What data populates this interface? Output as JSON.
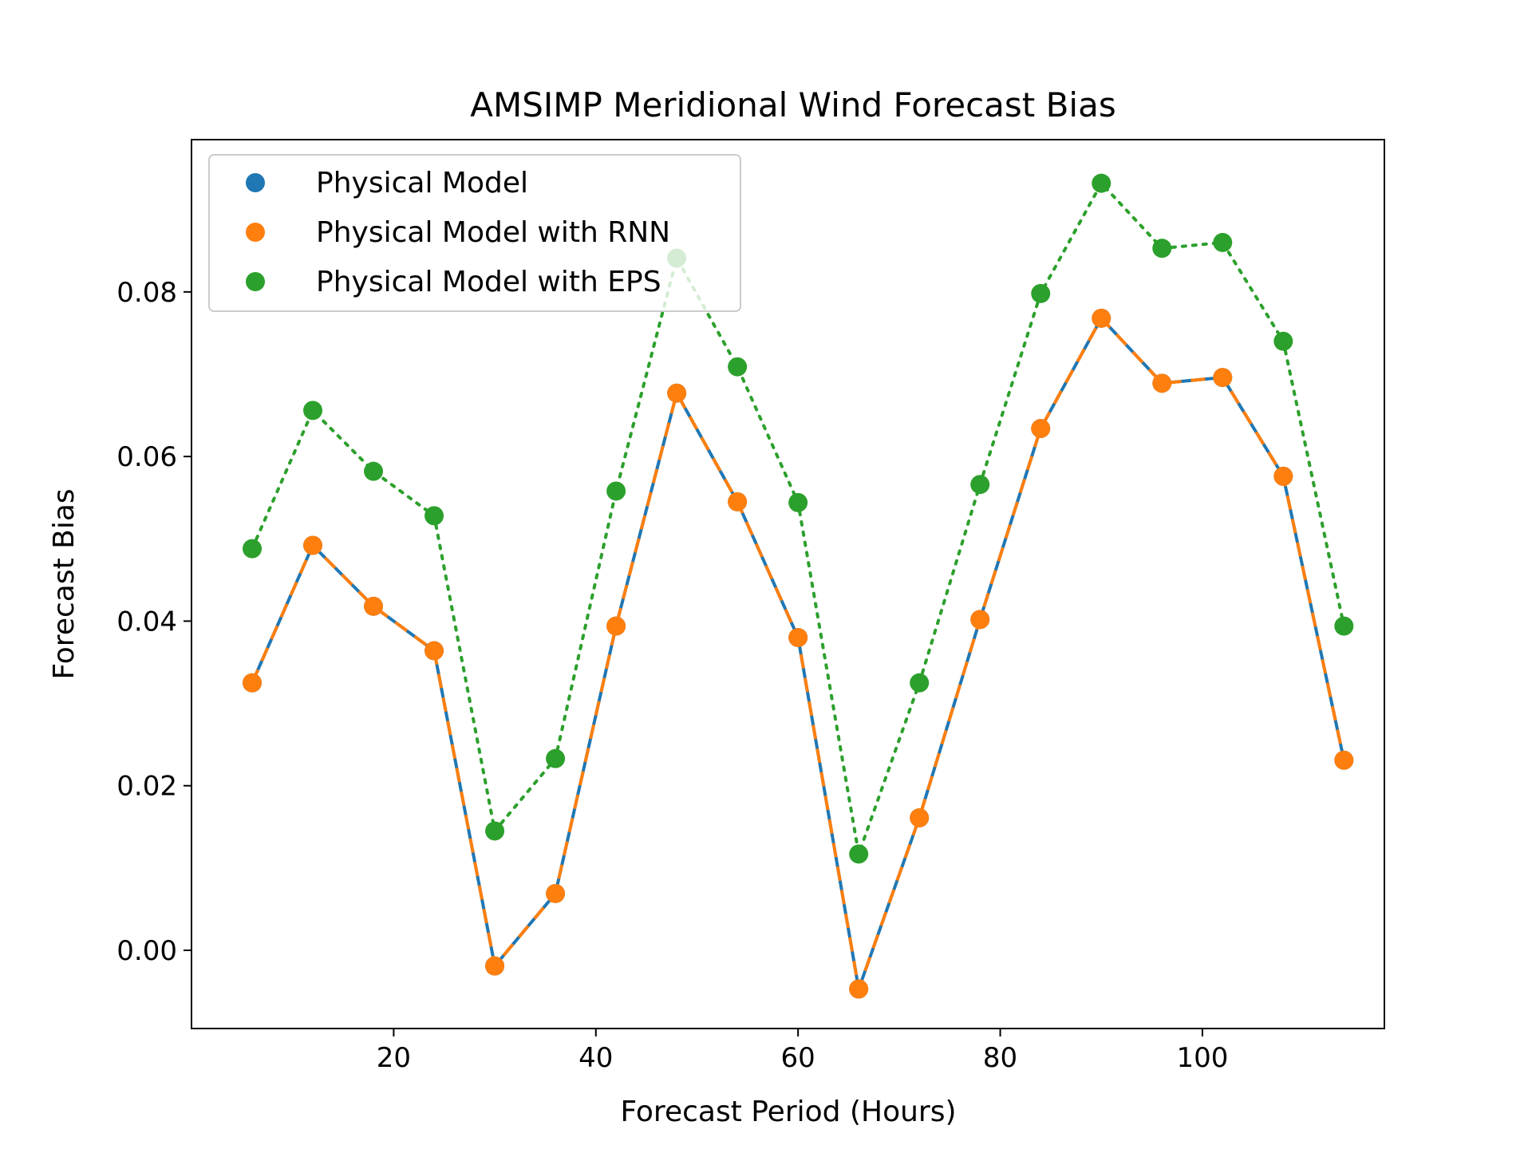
{
  "chart_data": {
    "type": "line",
    "title": "AMSIMP Meridional Wind Forecast Bias",
    "xlabel": "Forecast Period (Hours)",
    "ylabel": "Forecast Bias",
    "xlim": [
      0,
      118
    ],
    "ylim": [
      -0.0095,
      0.0985
    ],
    "xticks": [
      20,
      40,
      60,
      80,
      100
    ],
    "yticks": [
      0.0,
      0.02,
      0.04,
      0.06,
      0.08
    ],
    "ytick_labels": [
      "0.00",
      "0.02",
      "0.04",
      "0.06",
      "0.08"
    ],
    "grid": false,
    "legend_position": "upper-left",
    "x": [
      6,
      12,
      18,
      24,
      30,
      36,
      42,
      48,
      54,
      60,
      66,
      72,
      78,
      84,
      90,
      96,
      102,
      108,
      114
    ],
    "series": [
      {
        "name": "Physical Model",
        "color": "#1f77b4",
        "line_style": "solid",
        "values": [
          0.0325,
          0.0492,
          0.0418,
          0.0364,
          -0.0019,
          0.0069,
          0.0394,
          0.0677,
          0.0545,
          0.038,
          -0.0047,
          0.0161,
          0.0402,
          0.0634,
          0.0768,
          0.0689,
          0.0696,
          0.0576,
          0.0231
        ]
      },
      {
        "name": "Physical Model with RNN",
        "color": "#ff7f0e",
        "line_style": "dashed",
        "values": [
          0.0325,
          0.0492,
          0.0418,
          0.0364,
          -0.0019,
          0.0069,
          0.0394,
          0.0677,
          0.0545,
          0.038,
          -0.0047,
          0.0161,
          0.0402,
          0.0634,
          0.0768,
          0.0689,
          0.0696,
          0.0576,
          0.0231
        ]
      },
      {
        "name": "Physical Model with EPS",
        "color": "#2ca02c",
        "line_style": "dotted",
        "values": [
          0.0488,
          0.0656,
          0.0582,
          0.0528,
          0.0145,
          0.0233,
          0.0558,
          0.0841,
          0.0709,
          0.0544,
          0.0117,
          0.0325,
          0.0566,
          0.0798,
          0.0932,
          0.0853,
          0.086,
          0.074,
          0.0394
        ]
      }
    ]
  }
}
